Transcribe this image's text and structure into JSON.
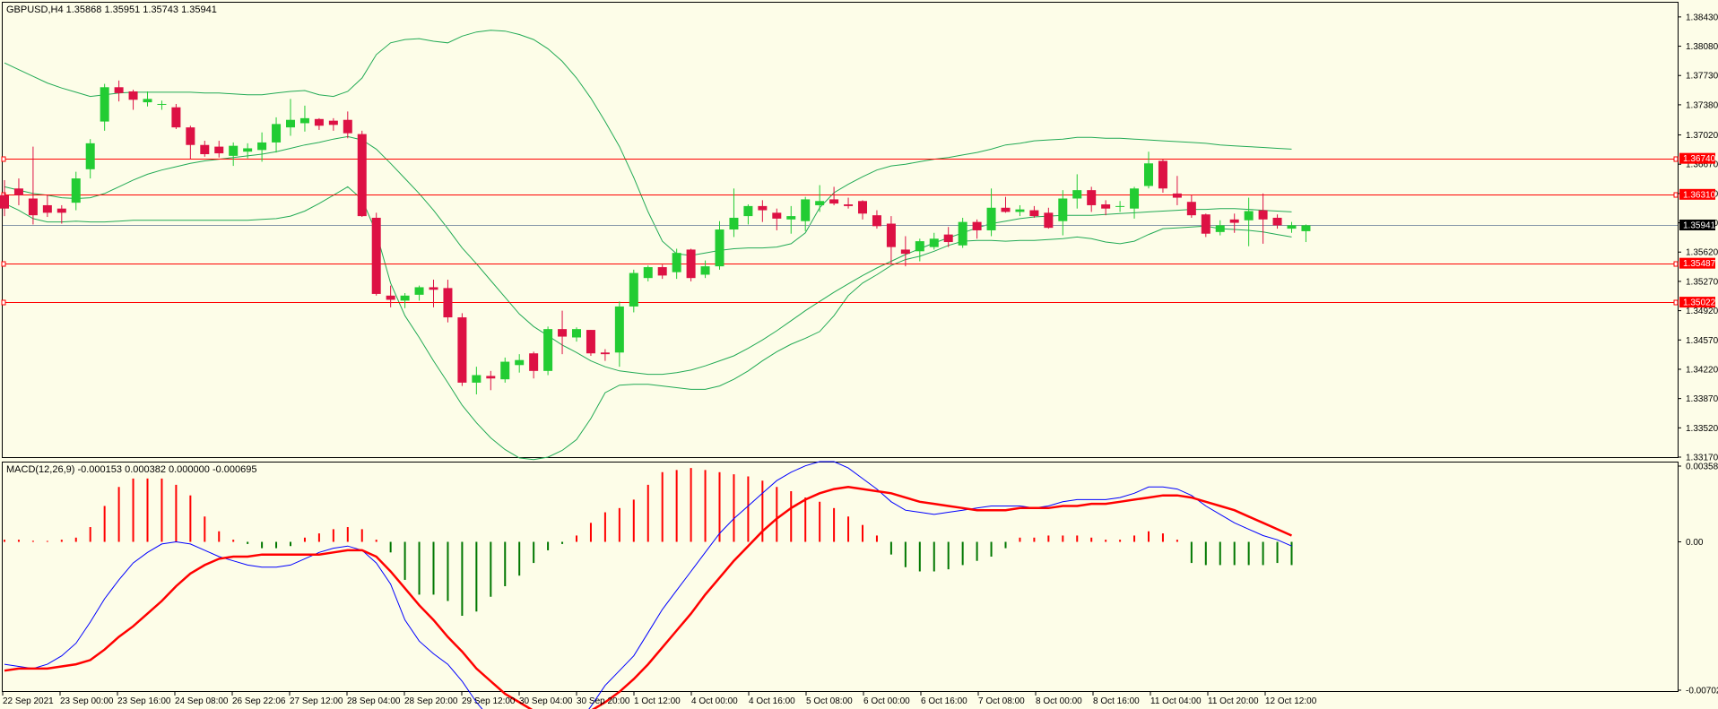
{
  "header": {
    "symbol_info": "GBPUSD,H4  1.35868 1.35951 1.35743 1.35941",
    "macd_info": "MACD(12,26,9) -0.000153 0.000382 0.000000 -0.000695"
  },
  "colors": {
    "background": "#fdfde8",
    "bull": "#22cc33",
    "bear": "#dd1144",
    "bands": "#22aa55",
    "level_lines": "#ff0000",
    "bid_line": "#8899aa",
    "macd_line": "#0000ff",
    "signal_line": "#ff0000",
    "hist_up": "#ff0000",
    "hist_down": "#007700"
  },
  "price_axis": {
    "ticks": [
      "1.38430",
      "1.38080",
      "1.37730",
      "1.37380",
      "1.37020",
      "1.36670",
      "1.36320",
      "1.35970",
      "1.35620",
      "1.35270",
      "1.34920",
      "1.34570",
      "1.34220",
      "1.33870",
      "1.33520",
      "1.33170"
    ],
    "current": "1.35941"
  },
  "levels": [
    "1.36740",
    "1.36310",
    "1.35487",
    "1.35022"
  ],
  "macd_axis": {
    "ticks": [
      "0.003588",
      "0.00",
      "-0.007025"
    ]
  },
  "time_axis": {
    "labels": [
      "22 Sep 2021",
      "23 Sep 00:00",
      "23 Sep 16:00",
      "24 Sep 08:00",
      "26 Sep 22:06",
      "27 Sep 12:00",
      "28 Sep 04:00",
      "28 Sep 20:00",
      "29 Sep 12:00",
      "30 Sep 04:00",
      "30 Sep 20:00",
      "1 Oct 12:00",
      "4 Oct 00:00",
      "4 Oct 16:00",
      "5 Oct 08:00",
      "6 Oct 00:00",
      "6 Oct 16:00",
      "7 Oct 08:00",
      "8 Oct 00:00",
      "8 Oct 16:00",
      "11 Oct 04:00",
      "11 Oct 20:00",
      "12 Oct 12:00"
    ]
  },
  "chart_data": {
    "type": "candlestick",
    "symbol": "GBPUSD",
    "timeframe": "H4",
    "ylim": [
      1.3317,
      1.386
    ],
    "candles": [
      [
        1.363,
        1.3648,
        1.3605,
        1.3614
      ],
      [
        1.3638,
        1.365,
        1.3618,
        1.363
      ],
      [
        1.3626,
        1.3688,
        1.3595,
        1.3606
      ],
      [
        1.3618,
        1.363,
        1.3604,
        1.3609
      ],
      [
        1.3614,
        1.3618,
        1.3596,
        1.3609
      ],
      [
        1.3621,
        1.3658,
        1.3612,
        1.365
      ],
      [
        1.3661,
        1.3697,
        1.365,
        1.3692
      ],
      [
        1.3718,
        1.3763,
        1.3707,
        1.3759
      ],
      [
        1.3759,
        1.3767,
        1.3742,
        1.3752
      ],
      [
        1.3754,
        1.3756,
        1.3732,
        1.3744
      ],
      [
        1.3741,
        1.3754,
        1.3736,
        1.3745
      ],
      [
        1.3739,
        1.3743,
        1.3732,
        1.3739
      ],
      [
        1.3735,
        1.3739,
        1.3709,
        1.3711
      ],
      [
        1.3711,
        1.3713,
        1.3673,
        1.369
      ],
      [
        1.369,
        1.3695,
        1.3676,
        1.3679
      ],
      [
        1.3688,
        1.3695,
        1.3675,
        1.368
      ],
      [
        1.3677,
        1.3693,
        1.3665,
        1.3689
      ],
      [
        1.3682,
        1.3692,
        1.3674,
        1.3686
      ],
      [
        1.3684,
        1.3705,
        1.367,
        1.3693
      ],
      [
        1.3693,
        1.3723,
        1.3681,
        1.3715
      ],
      [
        1.3711,
        1.3745,
        1.3701,
        1.372
      ],
      [
        1.3716,
        1.3737,
        1.3706,
        1.3722
      ],
      [
        1.3721,
        1.3722,
        1.3708,
        1.3713
      ],
      [
        1.3719,
        1.3722,
        1.3707,
        1.3714
      ],
      [
        1.372,
        1.373,
        1.3698,
        1.3704
      ],
      [
        1.3703,
        1.3707,
        1.3604,
        1.3605
      ],
      [
        1.3603,
        1.3609,
        1.351,
        1.3512
      ],
      [
        1.351,
        1.3522,
        1.3496,
        1.3505
      ],
      [
        1.3504,
        1.3513,
        1.3495,
        1.351
      ],
      [
        1.3511,
        1.3522,
        1.3504,
        1.352
      ],
      [
        1.352,
        1.3529,
        1.3496,
        1.3517
      ],
      [
        1.3519,
        1.3529,
        1.3478,
        1.3484
      ],
      [
        1.3484,
        1.3489,
        1.3402,
        1.3406
      ],
      [
        1.3406,
        1.3425,
        1.3392,
        1.3415
      ],
      [
        1.3414,
        1.342,
        1.3397,
        1.3411
      ],
      [
        1.341,
        1.3436,
        1.3406,
        1.3431
      ],
      [
        1.3427,
        1.344,
        1.3418,
        1.3433
      ],
      [
        1.3441,
        1.3443,
        1.3411,
        1.342
      ],
      [
        1.342,
        1.3473,
        1.3415,
        1.347
      ],
      [
        1.347,
        1.3492,
        1.344,
        1.3461
      ],
      [
        1.346,
        1.3472,
        1.3455,
        1.347
      ],
      [
        1.3469,
        1.3469,
        1.3438,
        1.3441
      ],
      [
        1.3442,
        1.3446,
        1.3432,
        1.344
      ],
      [
        1.3442,
        1.3503,
        1.3425,
        1.3497
      ],
      [
        1.3497,
        1.3541,
        1.349,
        1.3537
      ],
      [
        1.3531,
        1.3546,
        1.3527,
        1.3544
      ],
      [
        1.3544,
        1.3547,
        1.353,
        1.3534
      ],
      [
        1.3538,
        1.3566,
        1.353,
        1.3561
      ],
      [
        1.3565,
        1.3566,
        1.3527,
        1.3531
      ],
      [
        1.3535,
        1.3552,
        1.3531,
        1.3545
      ],
      [
        1.3545,
        1.3599,
        1.3541,
        1.3589
      ],
      [
        1.3589,
        1.3638,
        1.358,
        1.3603
      ],
      [
        1.3605,
        1.3619,
        1.3595,
        1.3617
      ],
      [
        1.3617,
        1.3624,
        1.3598,
        1.3612
      ],
      [
        1.3609,
        1.3614,
        1.3588,
        1.3602
      ],
      [
        1.3601,
        1.3617,
        1.3584,
        1.3605
      ],
      [
        1.3599,
        1.3628,
        1.3587,
        1.3625
      ],
      [
        1.3618,
        1.3642,
        1.361,
        1.3623
      ],
      [
        1.3625,
        1.364,
        1.3618,
        1.362
      ],
      [
        1.3619,
        1.3627,
        1.3614,
        1.3617
      ],
      [
        1.3623,
        1.3624,
        1.3601,
        1.3608
      ],
      [
        1.3606,
        1.3612,
        1.359,
        1.3593
      ],
      [
        1.3596,
        1.3605,
        1.3547,
        1.3568
      ],
      [
        1.3565,
        1.3581,
        1.3545,
        1.356
      ],
      [
        1.3563,
        1.3578,
        1.3551,
        1.3575
      ],
      [
        1.3568,
        1.3585,
        1.3565,
        1.3578
      ],
      [
        1.3583,
        1.3592,
        1.3568,
        1.3574
      ],
      [
        1.357,
        1.3603,
        1.3567,
        1.3598
      ],
      [
        1.3598,
        1.3601,
        1.3578,
        1.3588
      ],
      [
        1.3588,
        1.3638,
        1.3581,
        1.3615
      ],
      [
        1.3615,
        1.3628,
        1.3609,
        1.361
      ],
      [
        1.361,
        1.3618,
        1.3605,
        1.3613
      ],
      [
        1.3612,
        1.3617,
        1.3603,
        1.3605
      ],
      [
        1.3609,
        1.3615,
        1.359,
        1.3591
      ],
      [
        1.3599,
        1.3636,
        1.3582,
        1.3626
      ],
      [
        1.3626,
        1.3655,
        1.3614,
        1.3636
      ],
      [
        1.3636,
        1.364,
        1.361,
        1.3618
      ],
      [
        1.3619,
        1.3624,
        1.3606,
        1.3614
      ],
      [
        1.3616,
        1.3623,
        1.361,
        1.3617
      ],
      [
        1.3614,
        1.364,
        1.3602,
        1.3638
      ],
      [
        1.3641,
        1.3682,
        1.3638,
        1.3668
      ],
      [
        1.3671,
        1.3673,
        1.3633,
        1.3638
      ],
      [
        1.3632,
        1.3653,
        1.3618,
        1.3627
      ],
      [
        1.3622,
        1.363,
        1.3603,
        1.3606
      ],
      [
        1.3607,
        1.3608,
        1.358,
        1.3584
      ],
      [
        1.3586,
        1.36,
        1.3582,
        1.3594
      ],
      [
        1.3601,
        1.3608,
        1.3585,
        1.3597
      ],
      [
        1.36,
        1.3627,
        1.3569,
        1.3611
      ],
      [
        1.3612,
        1.3632,
        1.3572,
        1.3601
      ],
      [
        1.3603,
        1.3607,
        1.359,
        1.3594
      ],
      [
        1.359,
        1.3598,
        1.3585,
        1.3594
      ],
      [
        1.3587,
        1.3595,
        1.3574,
        1.3594
      ]
    ],
    "bollinger": {
      "upper": [
        1.3788,
        1.378,
        1.3772,
        1.3764,
        1.3758,
        1.3753,
        1.3748,
        1.375,
        1.3752,
        1.3753,
        1.3753,
        1.3753,
        1.3753,
        1.3753,
        1.3752,
        1.3752,
        1.3751,
        1.375,
        1.375,
        1.3752,
        1.3754,
        1.3755,
        1.375,
        1.3748,
        1.3754,
        1.377,
        1.3798,
        1.3812,
        1.3816,
        1.3817,
        1.3814,
        1.3812,
        1.382,
        1.3825,
        1.3827,
        1.3826,
        1.3822,
        1.3816,
        1.3805,
        1.379,
        1.377,
        1.3746,
        1.3718,
        1.3688,
        1.3651,
        1.361,
        1.3575,
        1.356,
        1.3558,
        1.3561,
        1.3564,
        1.3566,
        1.3567,
        1.3567,
        1.3568,
        1.3572,
        1.3585,
        1.3615,
        1.3633,
        1.3643,
        1.3652,
        1.366,
        1.3665,
        1.3667,
        1.367,
        1.3673,
        1.3675,
        1.3678,
        1.3681,
        1.3685,
        1.369,
        1.3692,
        1.3695,
        1.3696,
        1.3697,
        1.3699,
        1.3699,
        1.3698,
        1.3698,
        1.3697,
        1.3696,
        1.3695,
        1.3694,
        1.3693,
        1.3692,
        1.369,
        1.3689,
        1.3688,
        1.3687,
        1.3686,
        1.3685
      ],
      "middle": [
        1.364,
        1.3636,
        1.3632,
        1.363,
        1.3627,
        1.3626,
        1.3627,
        1.3632,
        1.364,
        1.3648,
        1.3655,
        1.366,
        1.3664,
        1.3668,
        1.3671,
        1.3673,
        1.3675,
        1.3677,
        1.3679,
        1.3682,
        1.3686,
        1.369,
        1.3693,
        1.3697,
        1.37,
        1.3696,
        1.3685,
        1.3668,
        1.365,
        1.3632,
        1.3612,
        1.359,
        1.3567,
        1.3548,
        1.3528,
        1.3508,
        1.3488,
        1.3473,
        1.3462,
        1.3451,
        1.3442,
        1.3432,
        1.3425,
        1.342,
        1.3418,
        1.3416,
        1.3416,
        1.3418,
        1.3421,
        1.3426,
        1.3432,
        1.3438,
        1.3447,
        1.3457,
        1.3468,
        1.348,
        1.3492,
        1.3503,
        1.3514,
        1.3524,
        1.3534,
        1.3543,
        1.3551,
        1.3559,
        1.3566,
        1.3573,
        1.3579,
        1.3585,
        1.3591,
        1.3596,
        1.3599,
        1.3602,
        1.3604,
        1.3605,
        1.3606,
        1.3606,
        1.3606,
        1.3607,
        1.3608,
        1.3609,
        1.361,
        1.3611,
        1.3612,
        1.3613,
        1.3613,
        1.3614,
        1.3614,
        1.3613,
        1.3612,
        1.3611,
        1.361
      ],
      "lower": [
        1.362,
        1.3612,
        1.3602,
        1.3598,
        1.3598,
        1.3599,
        1.3598,
        1.3598,
        1.3599,
        1.36,
        1.36,
        1.36,
        1.36,
        1.36,
        1.36,
        1.36,
        1.36,
        1.36,
        1.3601,
        1.3602,
        1.3605,
        1.3611,
        1.362,
        1.363,
        1.364,
        1.3625,
        1.3585,
        1.3525,
        1.3486,
        1.346,
        1.3432,
        1.3406,
        1.3379,
        1.3358,
        1.334,
        1.3326,
        1.3316,
        1.3314,
        1.3317,
        1.3325,
        1.3338,
        1.3363,
        1.3394,
        1.3403,
        1.3404,
        1.3404,
        1.3402,
        1.34,
        1.3398,
        1.3398,
        1.3402,
        1.341,
        1.342,
        1.3432,
        1.3443,
        1.3452,
        1.3459,
        1.3467,
        1.3486,
        1.351,
        1.3525,
        1.3535,
        1.3546,
        1.3553,
        1.3557,
        1.3563,
        1.357,
        1.3575,
        1.3576,
        1.3576,
        1.3575,
        1.3576,
        1.3576,
        1.3577,
        1.3578,
        1.358,
        1.3578,
        1.3574,
        1.3572,
        1.3575,
        1.3583,
        1.359,
        1.3591,
        1.3592,
        1.3593,
        1.359,
        1.3589,
        1.3588,
        1.3586,
        1.3583,
        1.358
      ]
    },
    "macd": {
      "ylim": [
        -0.007025,
        0.003588
      ],
      "histogram": [
        0.0001,
        0.0001,
        5e-05,
        3e-05,
        0.0001,
        0.0002,
        0.0007,
        0.0017,
        0.0026,
        0.003,
        0.003,
        0.003,
        0.0027,
        0.0022,
        0.0012,
        0.0005,
        0.0001,
        -0.0001,
        -0.0003,
        -0.0003,
        -0.0002,
        0.0002,
        0.0004,
        0.0006,
        0.0007,
        0.0006,
        0.0001,
        -0.0005,
        -0.0018,
        -0.0025,
        -0.0025,
        -0.0028,
        -0.0035,
        -0.0033,
        -0.0026,
        -0.0021,
        -0.0016,
        -0.001,
        -0.0004,
        -0.0001,
        0.0003,
        0.0009,
        0.0014,
        0.0016,
        0.002,
        0.0027,
        0.0033,
        0.0034,
        0.0035,
        0.0034,
        0.0033,
        0.0032,
        0.0031,
        0.0029,
        0.0026,
        0.0024,
        0.0021,
        0.0019,
        0.0016,
        0.0012,
        0.0008,
        0.0003,
        -0.0006,
        -0.0012,
        -0.0014,
        -0.0014,
        -0.0013,
        -0.0011,
        -0.0009,
        -0.0007,
        -0.0003,
        0.0002,
        0.0002,
        0.0003,
        0.0003,
        0.0003,
        0.0002,
        0.0001,
        0.0001,
        0.0003,
        0.0005,
        0.0004,
        0.0001,
        -0.001,
        -0.0011,
        -0.0011,
        -0.0011,
        -0.0011,
        -0.0011,
        -0.001,
        -0.0011
      ],
      "macd_line": [
        -0.0058,
        -0.0059,
        -0.006,
        -0.0058,
        -0.0054,
        -0.0048,
        -0.0038,
        -0.0027,
        -0.0018,
        -0.001,
        -0.0005,
        -0.0001,
        0.0,
        -0.0001,
        -0.0004,
        -0.0007,
        -0.0009,
        -0.0011,
        -0.0012,
        -0.0012,
        -0.0011,
        -0.0008,
        -0.0005,
        -0.0003,
        -0.0002,
        -0.0004,
        -0.001,
        -0.002,
        -0.0037,
        -0.0047,
        -0.0053,
        -0.0058,
        -0.0066,
        -0.0076,
        -0.0084,
        -0.0089,
        -0.0093,
        -0.0094,
        -0.0095,
        -0.0092,
        -0.0087,
        -0.0078,
        -0.0068,
        -0.0061,
        -0.0054,
        -0.0043,
        -0.0032,
        -0.0023,
        -0.0014,
        -0.0005,
        0.0004,
        0.0011,
        0.0017,
        0.0023,
        0.0029,
        0.0033,
        0.0036,
        0.0038,
        0.0038,
        0.0035,
        0.003,
        0.0025,
        0.0019,
        0.0015,
        0.0014,
        0.0013,
        0.0014,
        0.0015,
        0.0016,
        0.0017,
        0.0017,
        0.0017,
        0.0016,
        0.0017,
        0.0019,
        0.002,
        0.002,
        0.002,
        0.0021,
        0.0023,
        0.0026,
        0.0026,
        0.0025,
        0.0022,
        0.0017,
        0.0013,
        0.0009,
        0.0006,
        0.0003,
        0.0001,
        -0.0002
      ],
      "signal_line": [
        -0.0061,
        -0.006,
        -0.006,
        -0.006,
        -0.0059,
        -0.0058,
        -0.0056,
        -0.0051,
        -0.0045,
        -0.004,
        -0.0034,
        -0.0028,
        -0.0021,
        -0.0015,
        -0.0011,
        -0.0008,
        -0.0007,
        -0.0007,
        -0.0006,
        -0.0006,
        -0.0006,
        -0.0006,
        -0.0006,
        -0.0005,
        -0.0004,
        -0.0004,
        -0.0007,
        -0.0014,
        -0.0022,
        -0.003,
        -0.0037,
        -0.0045,
        -0.0052,
        -0.006,
        -0.0066,
        -0.0072,
        -0.0076,
        -0.008,
        -0.0082,
        -0.0083,
        -0.0083,
        -0.008,
        -0.0076,
        -0.0071,
        -0.0065,
        -0.0058,
        -0.005,
        -0.0042,
        -0.0034,
        -0.0025,
        -0.0017,
        -0.0009,
        -0.0002,
        0.0005,
        0.0011,
        0.0016,
        0.002,
        0.0023,
        0.0025,
        0.0026,
        0.0025,
        0.0024,
        0.0023,
        0.0021,
        0.0019,
        0.0018,
        0.0017,
        0.0016,
        0.0015,
        0.0015,
        0.0015,
        0.0016,
        0.0016,
        0.0016,
        0.0017,
        0.0017,
        0.0018,
        0.0018,
        0.0019,
        0.002,
        0.0021,
        0.0022,
        0.0022,
        0.0021,
        0.0019,
        0.0017,
        0.0015,
        0.0012,
        0.0009,
        0.0006,
        0.0003
      ]
    }
  }
}
